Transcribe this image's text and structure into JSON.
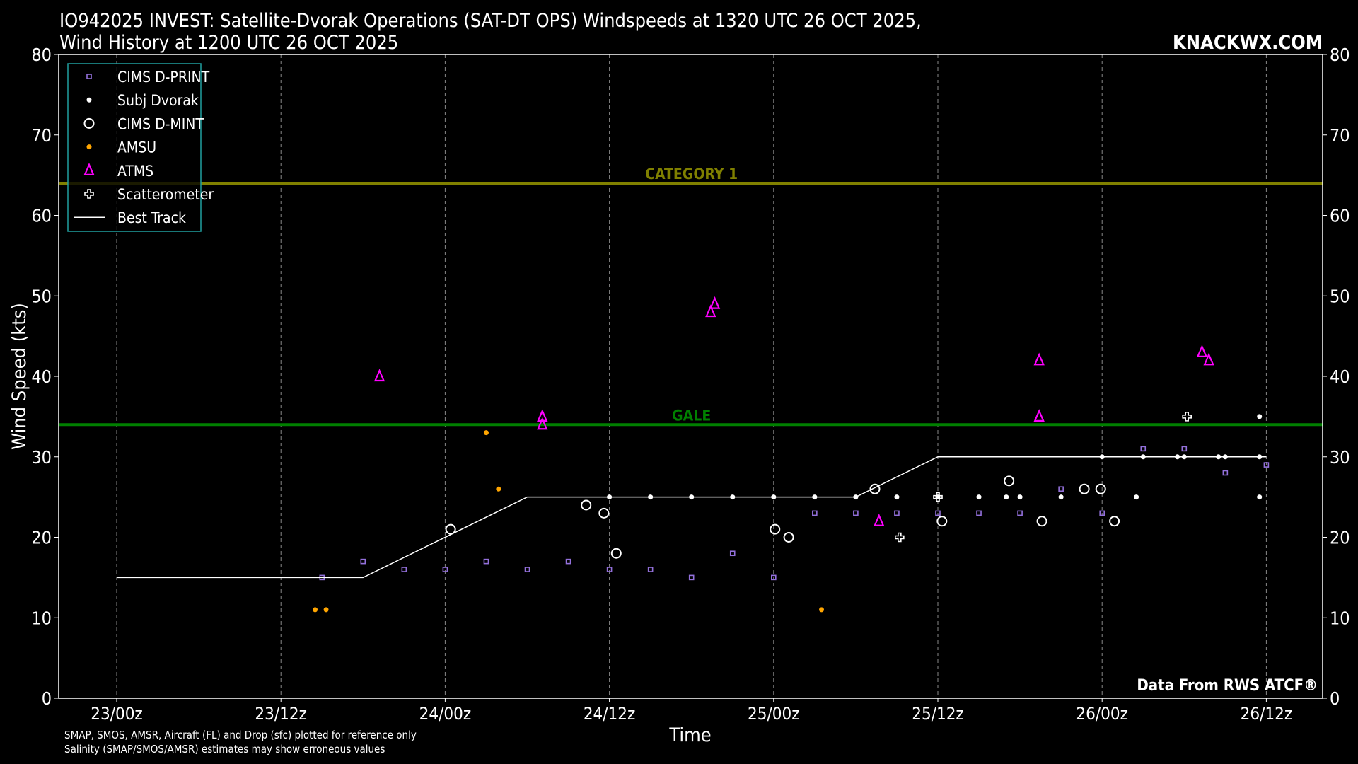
{
  "chart_data": {
    "type": "scatter",
    "title_line1": "IO942025 INVEST: Satellite-Dvorak Operations (SAT-DT OPS) Windspeeds at 1320 UTC 26 OCT 2025,",
    "title_line2": "Wind History at 1200 UTC 26 OCT 2025",
    "brand": "KNACKWX.COM",
    "credit": "Data From RWS ATCF®",
    "xlabel": "Time",
    "ylabel": "Wind Speed (kts)",
    "x_unit": "hours since 23/00z",
    "xlim": [
      -3.5,
      88.5
    ],
    "ylim": [
      0,
      80
    ],
    "yticks": [
      0,
      10,
      20,
      30,
      40,
      50,
      60,
      70,
      80
    ],
    "xticks": [
      {
        "x": 0,
        "label": "23/00z"
      },
      {
        "x": 12,
        "label": "23/12z"
      },
      {
        "x": 24,
        "label": "24/00z"
      },
      {
        "x": 36,
        "label": "24/12z"
      },
      {
        "x": 48,
        "label": "25/00z"
      },
      {
        "x": 60,
        "label": "25/12z"
      },
      {
        "x": 72,
        "label": "26/00z"
      },
      {
        "x": 84,
        "label": "26/12z"
      }
    ],
    "grid": "vertical dashed",
    "legend_placement": "top-left",
    "thresholds": [
      {
        "name": "CATEGORY 1",
        "value": 64,
        "color": "#808000",
        "label_x": 42
      },
      {
        "name": "GALE",
        "value": 34,
        "color": "#008000",
        "label_x": 42
      }
    ],
    "series": [
      {
        "name": "CIMS D-PRINT",
        "marker": "square",
        "color": "#9370db",
        "points": [
          [
            15,
            15
          ],
          [
            18,
            17
          ],
          [
            21,
            16
          ],
          [
            24,
            16
          ],
          [
            27,
            17
          ],
          [
            30,
            16
          ],
          [
            33,
            17
          ],
          [
            36,
            16
          ],
          [
            39,
            16
          ],
          [
            42,
            15
          ],
          [
            45,
            18
          ],
          [
            48,
            15
          ],
          [
            51,
            23
          ],
          [
            54,
            23
          ],
          [
            57,
            23
          ],
          [
            60,
            23
          ],
          [
            63,
            23
          ],
          [
            66,
            23
          ],
          [
            69,
            26
          ],
          [
            72,
            23
          ],
          [
            75,
            31
          ],
          [
            78,
            31
          ],
          [
            81,
            28
          ],
          [
            84,
            29
          ]
        ]
      },
      {
        "name": "Subj Dvorak",
        "marker": "dot",
        "color": "#ffffff",
        "points": [
          [
            36,
            25
          ],
          [
            39,
            25
          ],
          [
            42,
            25
          ],
          [
            45,
            25
          ],
          [
            48,
            25
          ],
          [
            51,
            25
          ],
          [
            54,
            25
          ],
          [
            57,
            25
          ],
          [
            60,
            25
          ],
          [
            63,
            25
          ],
          [
            65,
            25
          ],
          [
            66,
            25
          ],
          [
            69,
            25
          ],
          [
            72,
            30
          ],
          [
            74.5,
            25
          ],
          [
            75,
            30
          ],
          [
            77.5,
            30
          ],
          [
            78,
            30
          ],
          [
            80.5,
            30
          ],
          [
            81,
            30
          ],
          [
            83.5,
            35
          ],
          [
            83.5,
            30
          ],
          [
            83.5,
            25
          ]
        ]
      },
      {
        "name": "CIMS D-MINT",
        "marker": "circle",
        "color": "#ffffff",
        "points": [
          [
            24.4,
            21
          ],
          [
            34.3,
            24
          ],
          [
            35.6,
            23
          ],
          [
            36.5,
            18
          ],
          [
            48.1,
            21
          ],
          [
            49.1,
            20
          ],
          [
            55.4,
            26
          ],
          [
            60.3,
            22
          ],
          [
            65.2,
            27
          ],
          [
            67.6,
            22
          ],
          [
            70.7,
            26
          ],
          [
            71.9,
            26
          ],
          [
            72.9,
            22
          ]
        ]
      },
      {
        "name": "AMSU",
        "marker": "dot",
        "color": "#ffa500",
        "points": [
          [
            14.5,
            11
          ],
          [
            15.3,
            11
          ],
          [
            27,
            33
          ],
          [
            27.9,
            26
          ],
          [
            51.5,
            11
          ]
        ]
      },
      {
        "name": "ATMS",
        "marker": "triangle",
        "color": "#ff00ff",
        "points": [
          [
            19.2,
            40
          ],
          [
            31.1,
            35
          ],
          [
            31.1,
            34
          ],
          [
            43.4,
            48
          ],
          [
            43.7,
            49
          ],
          [
            55.7,
            22
          ],
          [
            67.4,
            42
          ],
          [
            67.4,
            35
          ],
          [
            79.3,
            43
          ],
          [
            79.8,
            42
          ]
        ]
      },
      {
        "name": "Scatterometer",
        "marker": "plus",
        "color": "#ffffff",
        "points": [
          [
            57.2,
            20
          ],
          [
            60,
            25
          ],
          [
            78.2,
            35
          ]
        ]
      },
      {
        "name": "Best Track",
        "marker": "line",
        "color": "#ffffff",
        "points": [
          [
            0,
            15
          ],
          [
            18,
            15
          ],
          [
            30,
            25
          ],
          [
            54,
            25
          ],
          [
            60,
            30
          ],
          [
            84,
            30
          ]
        ]
      }
    ],
    "footnote_line1": "SMAP, SMOS, AMSR, Aircraft (FL) and Drop (sfc) plotted for reference only",
    "footnote_line2": "Salinity (SMAP/SMOS/AMSR) estimates may show erroneous values"
  }
}
